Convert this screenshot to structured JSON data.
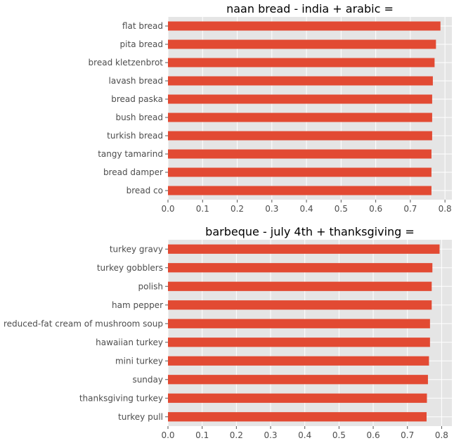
{
  "colors": {
    "bar": "#e24a33",
    "plot_background": "#e5e5e5",
    "grid": "#ffffff",
    "tick_text": "#4d4d4d",
    "title_text": "#000000"
  },
  "chart_data": [
    {
      "type": "bar",
      "orientation": "horizontal",
      "title": "naan bread - india + arabic =",
      "xlabel": "",
      "ylabel": "",
      "categories": [
        "flat bread",
        "pita bread",
        "bread kletzenbrot",
        "lavash bread",
        "bread paska",
        "bush bread",
        "turkish bread",
        "tangy tamarind",
        "bread damper",
        "bread co"
      ],
      "values": [
        0.787,
        0.774,
        0.77,
        0.765,
        0.763,
        0.763,
        0.763,
        0.761,
        0.761,
        0.761
      ],
      "xlim": [
        0,
        0.82
      ],
      "xticks": [
        "0.0",
        "0.1",
        "0.2",
        "0.3",
        "0.4",
        "0.5",
        "0.6",
        "0.7",
        "0.8"
      ],
      "grid": true,
      "legend": "none"
    },
    {
      "type": "bar",
      "orientation": "horizontal",
      "title": "barbeque - july 4th + thanksgiving =",
      "xlabel": "",
      "ylabel": "",
      "categories": [
        "turkey gravy",
        "turkey gobblers",
        "polish",
        "ham pepper",
        "reduced-fat cream of mushroom soup",
        "hawaiian turkey",
        "mini turkey",
        "sunday",
        "thanksgiving turkey",
        "turkey pull"
      ],
      "values": [
        0.794,
        0.773,
        0.771,
        0.771,
        0.766,
        0.766,
        0.763,
        0.76,
        0.757,
        0.756
      ],
      "xlim": [
        0,
        0.83
      ],
      "xticks": [
        "0.0",
        "0.1",
        "0.2",
        "0.3",
        "0.4",
        "0.5",
        "0.6",
        "0.7",
        "0.8"
      ],
      "grid": true,
      "legend": "none"
    }
  ]
}
